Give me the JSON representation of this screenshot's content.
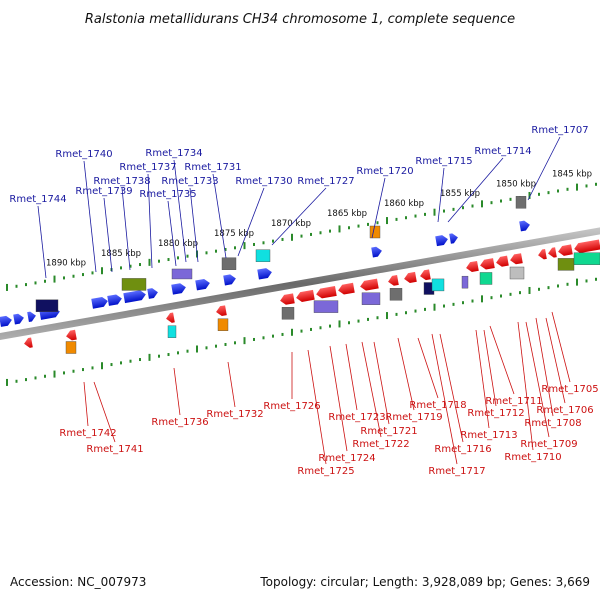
{
  "title": "Ralstonia metallidurans CH34 chromosome 1, complete sequence",
  "footer": {
    "accession": "Accession: NC_007973",
    "summary": "Topology: circular; Length: 3,928,089 bp; Genes: 3,669"
  },
  "colors": {
    "plus_strand": "#0a1ee6",
    "minus_strand": "#ee1111",
    "label_plus": "#1a1aa0",
    "label_minus": "#cc1111",
    "backbone": "#8a8a8a",
    "tick": "#2a8a2a",
    "feature_purple": "#7b68d8",
    "feature_olive": "#6f8f10",
    "feature_orange": "#f08a00",
    "feature_cyan": "#10e0e0",
    "feature_green": "#10d890",
    "feature_gray": "#6e6e6e",
    "feature_lightgray": "#bdbdbd",
    "feature_navy": "#101060"
  },
  "kbp_labels": [
    "1890 kbp",
    "1885 kbp",
    "1880 kbp",
    "1875 kbp",
    "1870 kbp",
    "1865 kbp",
    "1860 kbp",
    "1855 kbp",
    "1850 kbp",
    "1845 kbp"
  ],
  "genes_plus": [
    "Rmet_1707",
    "Rmet_1714",
    "Rmet_1715",
    "Rmet_1720",
    "Rmet_1727",
    "Rmet_1730",
    "Rmet_1731",
    "Rmet_1733",
    "Rmet_1734",
    "Rmet_1735",
    "Rmet_1737",
    "Rmet_1738",
    "Rmet_1739",
    "Rmet_1740",
    "Rmet_1744"
  ],
  "genes_minus": [
    "Rmet_1705",
    "Rmet_1706",
    "Rmet_1708",
    "Rmet_1709",
    "Rmet_1710",
    "Rmet_1711",
    "Rmet_1712",
    "Rmet_1713",
    "Rmet_1716",
    "Rmet_1717",
    "Rmet_1718",
    "Rmet_1719",
    "Rmet_1721",
    "Rmet_1722",
    "Rmet_1723",
    "Rmet_1724",
    "Rmet_1725",
    "Rmet_1726",
    "Rmet_1732",
    "Rmet_1736",
    "Rmet_1741",
    "Rmet_1742"
  ]
}
